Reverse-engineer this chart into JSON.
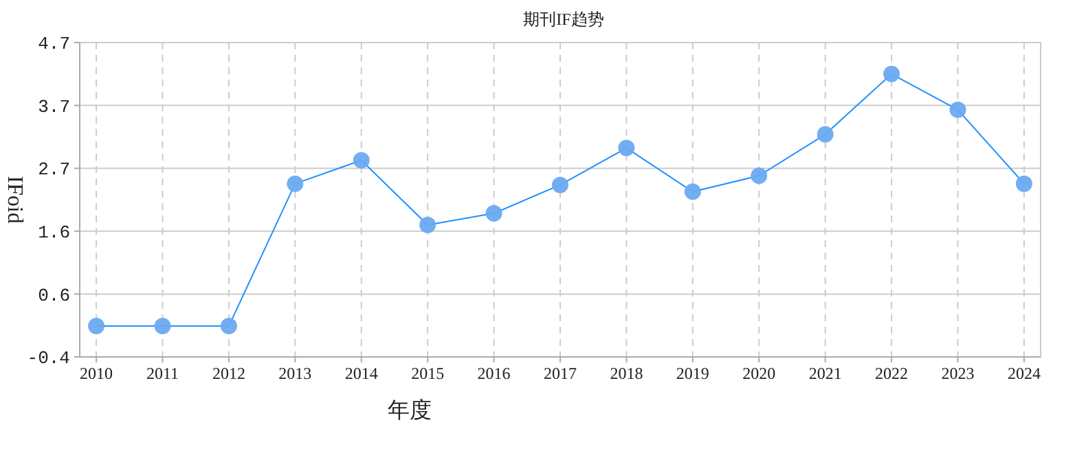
{
  "chart_data": {
    "type": "line",
    "title": "期刊IF趋势",
    "xlabel": "年度",
    "ylabel": "IFoid",
    "categories": [
      "2010",
      "2011",
      "2012",
      "2013",
      "2014",
      "2015",
      "2016",
      "2017",
      "2018",
      "2019",
      "2020",
      "2021",
      "2022",
      "2023",
      "2024"
    ],
    "series": [
      {
        "color": "#1e90ff",
        "values": [
          0.1,
          0.1,
          0.1,
          2.41,
          2.79,
          1.74,
          1.93,
          2.39,
          2.99,
          2.28,
          2.54,
          3.21,
          4.19,
          3.61,
          2.41
        ]
      }
    ],
    "ylim": [
      -0.4,
      4.7
    ],
    "yticks": [
      -0.4,
      {
        "value": 0.62,
        "label": "0.6"
      },
      {
        "value": 1.64,
        "label": "1.6"
      },
      {
        "value": 2.66,
        "label": "2.7"
      },
      {
        "value": 3.68,
        "label": "3.7"
      },
      4.7
    ],
    "grid": true,
    "marker": "circle",
    "line_style": "solid"
  }
}
